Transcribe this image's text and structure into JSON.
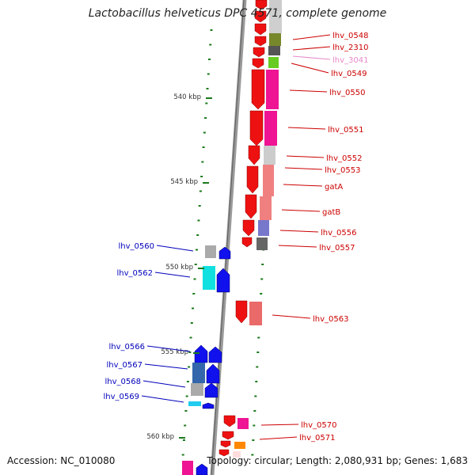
{
  "title": "Lactobacillus helveticus DPC 4571, complete genome",
  "footer": {
    "accession": "Accession: NC_010080",
    "topology": "Topology: circular; Length: 2,080,931 bp; Genes: 1,683"
  },
  "colors": {
    "tick": "#1a7a1a",
    "backbone": "#8a8a8a",
    "label_red": "#cc0000",
    "label_pink": "#e889c8",
    "label_blue": "#0000bb",
    "kbp_text": "#333333"
  },
  "scale_labels": [
    {
      "kbp": 540,
      "text": "540 kbp"
    },
    {
      "kbp": 545,
      "text": "545 kbp"
    },
    {
      "kbp": 550,
      "text": "550 kbp"
    },
    {
      "kbp": 555,
      "text": "555 kbp"
    },
    {
      "kbp": 560,
      "text": "560 kbp"
    }
  ],
  "genes_right": [
    {
      "name": "lhv_0548",
      "strand": "forward",
      "color": "red"
    },
    {
      "name": "lhv_2310",
      "strand": "forward",
      "color": "red"
    },
    {
      "name": "lhv_3041",
      "strand": "forward",
      "color": "pink"
    },
    {
      "name": "lhv_0549",
      "strand": "forward",
      "color": "red"
    },
    {
      "name": "lhv_0550",
      "strand": "forward",
      "color": "red"
    },
    {
      "name": "lhv_0551",
      "strand": "forward",
      "color": "red"
    },
    {
      "name": "lhv_0552",
      "strand": "forward",
      "color": "red"
    },
    {
      "name": "lhv_0553",
      "strand": "forward",
      "color": "red"
    },
    {
      "name": "gatA",
      "strand": "forward",
      "color": "red"
    },
    {
      "name": "gatB",
      "strand": "forward",
      "color": "red"
    },
    {
      "name": "lhv_0556",
      "strand": "forward",
      "color": "red"
    },
    {
      "name": "lhv_0557",
      "strand": "forward",
      "color": "red"
    },
    {
      "name": "lhv_0563",
      "strand": "forward",
      "color": "red"
    },
    {
      "name": "lhv_0570",
      "strand": "forward",
      "color": "red"
    },
    {
      "name": "lhv_0571",
      "strand": "forward",
      "color": "red"
    }
  ],
  "genes_left": [
    {
      "name": "lhv_0560",
      "strand": "reverse",
      "color": "blue"
    },
    {
      "name": "lhv_0562",
      "strand": "reverse",
      "color": "blue"
    },
    {
      "name": "lhv_0566",
      "strand": "reverse",
      "color": "blue"
    },
    {
      "name": "lhv_0567",
      "strand": "reverse",
      "color": "blue"
    },
    {
      "name": "lhv_0568",
      "strand": "reverse",
      "color": "blue"
    },
    {
      "name": "lhv_0569",
      "strand": "reverse",
      "color": "blue"
    }
  ]
}
